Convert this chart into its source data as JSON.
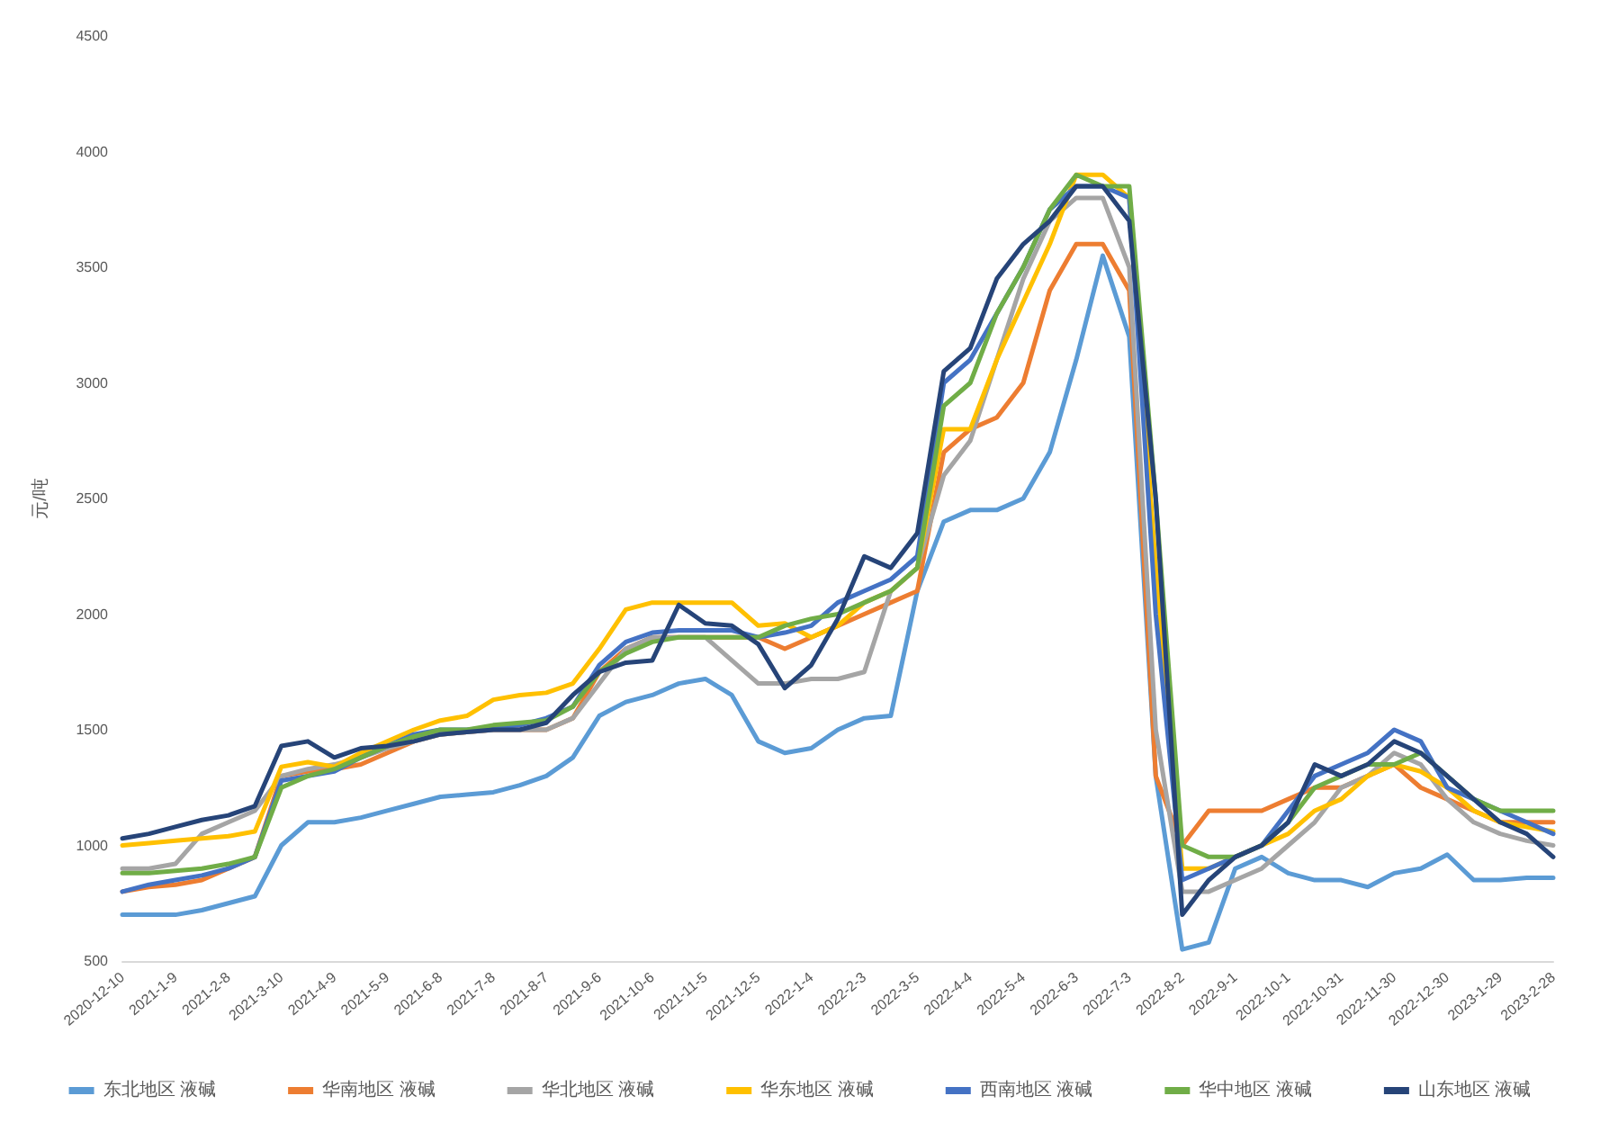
{
  "chart_data": {
    "type": "line",
    "ylabel": "元/吨",
    "ylim": [
      500,
      4500
    ],
    "yticks": [
      500,
      1000,
      1500,
      2000,
      2500,
      3000,
      3500,
      4000,
      4500
    ],
    "grid": false,
    "legend": "bottom",
    "marker": "none",
    "line_style": "solid",
    "categories": [
      "2020-12-10",
      null,
      "2021-1-9",
      null,
      "2021-2-8",
      null,
      "2021-3-10",
      null,
      "2021-4-9",
      null,
      "2021-5-9",
      null,
      "2021-6-8",
      null,
      "2021-7-8",
      null,
      "2021-8-7",
      null,
      "2021-9-6",
      null,
      "2021-10-6",
      null,
      "2021-11-5",
      null,
      "2021-12-5",
      null,
      "2022-1-4",
      null,
      "2022-2-3",
      null,
      "2022-3-5",
      null,
      "2022-4-4",
      null,
      "2022-5-4",
      null,
      "2022-6-3",
      null,
      "2022-7-3",
      null,
      "2022-8-2",
      null,
      "2022-9-1",
      null,
      "2022-10-1",
      null,
      "2022-10-31",
      null,
      "2022-11-30",
      null,
      "2022-12-30",
      null,
      "2023-1-29",
      null,
      "2023-2-28"
    ],
    "series": [
      {
        "name": "东北地区 液碱",
        "color": "#5b9bd5",
        "values": [
          700,
          700,
          700,
          720,
          750,
          780,
          1000,
          1100,
          1100,
          1120,
          1150,
          1180,
          1210,
          1220,
          1230,
          1260,
          1300,
          1380,
          1560,
          1620,
          1650,
          1700,
          1720,
          1650,
          1450,
          1400,
          1420,
          1500,
          1550,
          1560,
          2100,
          2400,
          2450,
          2450,
          2500,
          2700,
          3100,
          3550,
          3200,
          1300,
          550,
          580,
          900,
          950,
          880,
          850,
          850,
          820,
          880,
          900,
          960,
          850,
          850,
          860,
          860
        ]
      },
      {
        "name": "华南地区 液碱",
        "color": "#ed7d31",
        "values": [
          800,
          820,
          830,
          850,
          900,
          950,
          1300,
          1320,
          1330,
          1350,
          1400,
          1450,
          1480,
          1490,
          1500,
          1500,
          1500,
          1550,
          1750,
          1850,
          1900,
          1900,
          1900,
          1900,
          1900,
          1850,
          1900,
          1950,
          2000,
          2050,
          2100,
          2700,
          2800,
          2850,
          3000,
          3400,
          3600,
          3600,
          3400,
          1300,
          1000,
          1150,
          1150,
          1150,
          1200,
          1250,
          1250,
          1300,
          1350,
          1250,
          1200,
          1150,
          1100,
          1100,
          1100
        ]
      },
      {
        "name": "华北地区 液碱",
        "color": "#a5a5a5",
        "values": [
          900,
          900,
          920,
          1050,
          1100,
          1150,
          1300,
          1330,
          1350,
          1380,
          1420,
          1450,
          1480,
          1490,
          1500,
          1500,
          1500,
          1550,
          1700,
          1850,
          1900,
          1900,
          1900,
          1800,
          1700,
          1700,
          1720,
          1720,
          1750,
          2100,
          2200,
          2600,
          2750,
          3100,
          3450,
          3700,
          3800,
          3800,
          3500,
          1500,
          800,
          800,
          850,
          900,
          1000,
          1100,
          1250,
          1300,
          1400,
          1350,
          1200,
          1100,
          1050,
          1020,
          1000
        ]
      },
      {
        "name": "华东地区 液碱",
        "color": "#ffc000",
        "values": [
          1000,
          1010,
          1020,
          1030,
          1040,
          1060,
          1340,
          1360,
          1340,
          1400,
          1450,
          1500,
          1540,
          1560,
          1630,
          1650,
          1660,
          1700,
          1850,
          2020,
          2050,
          2050,
          2050,
          2050,
          1950,
          1960,
          1900,
          1950,
          2050,
          2100,
          2200,
          2800,
          2800,
          3100,
          3350,
          3600,
          3900,
          3900,
          3800,
          2200,
          900,
          900,
          950,
          1000,
          1050,
          1150,
          1200,
          1300,
          1350,
          1320,
          1250,
          1150,
          1100,
          1080,
          1060
        ]
      },
      {
        "name": "西南地区 液碱",
        "color": "#4472c4",
        "values": [
          800,
          830,
          850,
          870,
          900,
          950,
          1280,
          1300,
          1320,
          1380,
          1430,
          1480,
          1500,
          1500,
          1510,
          1520,
          1550,
          1600,
          1780,
          1880,
          1920,
          1930,
          1930,
          1930,
          1900,
          1920,
          1950,
          2050,
          2100,
          2150,
          2250,
          3000,
          3100,
          3300,
          3500,
          3750,
          3850,
          3850,
          3800,
          2000,
          850,
          900,
          950,
          1000,
          1150,
          1300,
          1350,
          1400,
          1500,
          1450,
          1250,
          1200,
          1150,
          1100,
          1050
        ]
      },
      {
        "name": "华中地区 液碱",
        "color": "#70ad47",
        "values": [
          880,
          880,
          890,
          900,
          920,
          950,
          1250,
          1300,
          1330,
          1380,
          1430,
          1470,
          1500,
          1500,
          1520,
          1530,
          1540,
          1600,
          1750,
          1830,
          1880,
          1900,
          1900,
          1900,
          1900,
          1950,
          1980,
          2000,
          2050,
          2100,
          2200,
          2900,
          3000,
          3300,
          3500,
          3750,
          3900,
          3850,
          3850,
          2500,
          1000,
          950,
          950,
          1000,
          1100,
          1250,
          1300,
          1350,
          1350,
          1400,
          1300,
          1200,
          1150,
          1150,
          1150
        ]
      },
      {
        "name": "山东地区 液碱",
        "color": "#264478",
        "values": [
          1030,
          1050,
          1080,
          1110,
          1130,
          1170,
          1430,
          1450,
          1380,
          1420,
          1430,
          1450,
          1480,
          1490,
          1500,
          1500,
          1530,
          1650,
          1750,
          1790,
          1800,
          2040,
          1960,
          1950,
          1870,
          1680,
          1780,
          1980,
          2250,
          2200,
          2350,
          3050,
          3150,
          3450,
          3600,
          3700,
          3850,
          3850,
          3700,
          2500,
          700,
          850,
          950,
          1000,
          1100,
          1350,
          1300,
          1350,
          1450,
          1400,
          1300,
          1200,
          1100,
          1050,
          950
        ]
      }
    ]
  }
}
